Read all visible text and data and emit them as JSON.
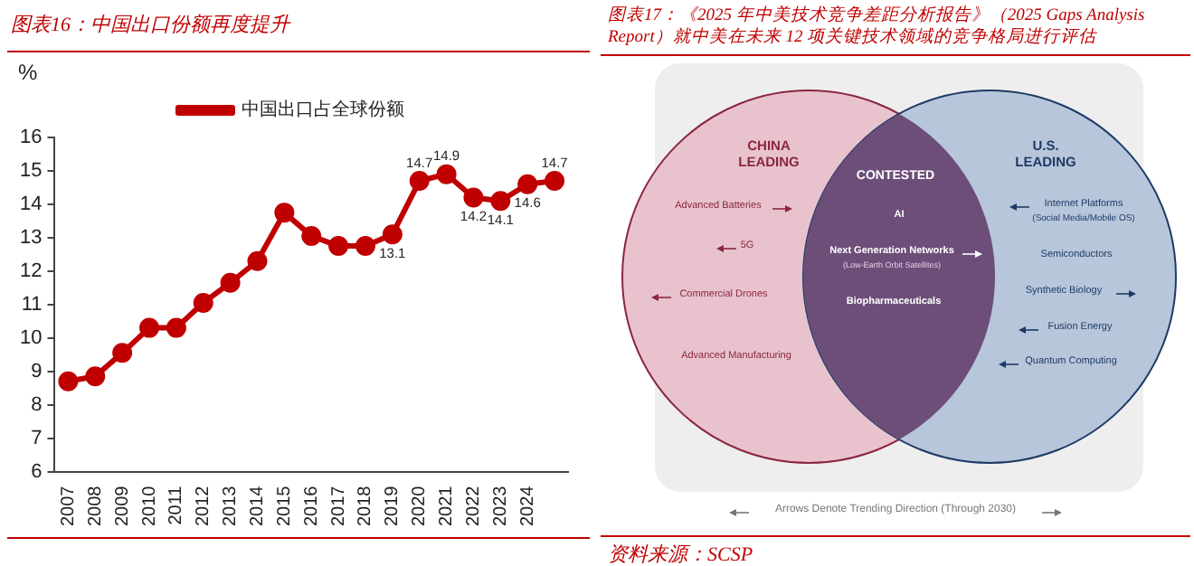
{
  "chart_data": [
    {
      "type": "line",
      "title": "图表16：中国出口份额再度提升",
      "ylabel": "%",
      "categories": [
        "2007",
        "2008",
        "2009",
        "2010",
        "2011",
        "2012",
        "2013",
        "2014",
        "2015",
        "2016",
        "2017",
        "2018",
        "2019",
        "2020",
        "2021",
        "2022",
        "2023",
        "2024",
        null
      ],
      "series": [
        {
          "name": "中国出口占全球份额",
          "color": "#c00000",
          "values": [
            8.7,
            8.85,
            9.55,
            10.3,
            10.3,
            11.05,
            11.65,
            12.3,
            13.75,
            13.05,
            12.75,
            12.75,
            13.1,
            14.7,
            14.9,
            14.2,
            14.1,
            14.6,
            14.7
          ],
          "value_labels": [
            null,
            null,
            null,
            null,
            null,
            null,
            null,
            null,
            null,
            null,
            null,
            null,
            "13.1",
            "14.7",
            "14.9",
            "14.2",
            "14.1",
            "14.6",
            "14.7"
          ]
        }
      ],
      "ylim": [
        6,
        16
      ],
      "yticks": [
        6,
        7,
        8,
        9,
        10,
        11,
        12,
        13,
        14,
        15,
        16
      ],
      "grid": false,
      "legend": "top",
      "marker": "circle"
    },
    {
      "type": "other",
      "title": "图表17：《2025 年中美技术竞争差距分析报告》（2025 Gaps Analysis Report）就中美在未来 12 项关键技术领域的竞争格局进行评估",
      "annotations": [
        "CHINA\nLEADING",
        "U.S.\nLEADING",
        "CONTESTED",
        "Advanced Batteries",
        "5G",
        "Commercial Drones",
        "Advanced Manufacturing",
        "AI",
        "Next Generation Networks",
        "(Low-Earth Orbit Satellites)",
        "Biopharmaceuticals",
        "Internet Platforms",
        "(Social Media/Mobile OS)",
        "Semiconductors",
        "Synthetic Biology",
        "Fusion Energy",
        "Quantum Computing",
        "Arrows Denote Trending Direction (Through 2030)",
        "资料来源：SCSP"
      ]
    }
  ]
}
